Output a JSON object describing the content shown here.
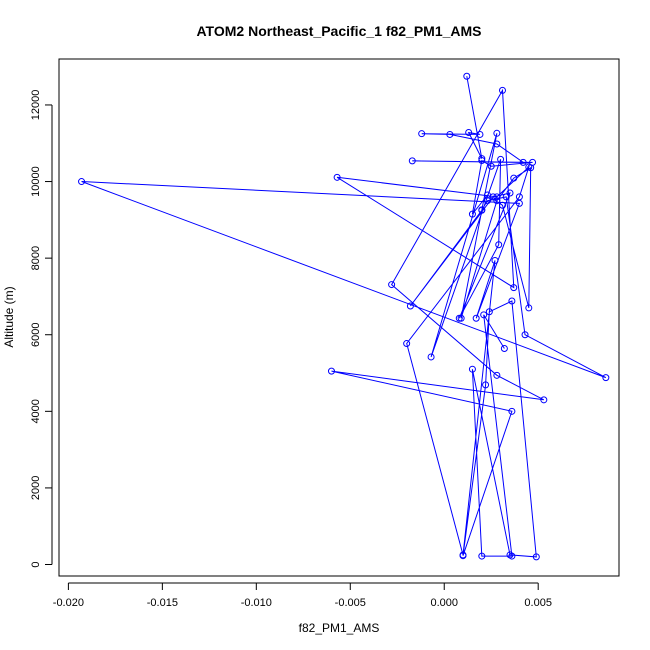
{
  "chart_data": {
    "type": "line",
    "title": "ATOM2 Northeast_Pacific_1 f82_PM1_AMS",
    "xlabel": "f82_PM1_AMS",
    "ylabel": "Altitude (m)",
    "xlim": [
      -0.0205,
      0.0093
    ],
    "ylim": [
      -300,
      13200
    ],
    "xticks": [
      -0.02,
      -0.015,
      -0.01,
      -0.005,
      0.0,
      0.005
    ],
    "xtick_labels": [
      "-0.020",
      "-0.015",
      "-0.010",
      "-0.005",
      "0.000",
      "0.005"
    ],
    "yticks": [
      0,
      2000,
      4000,
      6000,
      8000,
      10000,
      12000
    ],
    "ytick_labels": [
      "0",
      "2000",
      "4000",
      "6000",
      "8000",
      "10000",
      "12000"
    ],
    "color": "#0000ff",
    "grid": false,
    "series": [
      {
        "x": [
          0.0012,
          0.002,
          0.0013,
          0.0019,
          -0.0012,
          0.0003,
          0.0028,
          0.0042,
          -0.0017,
          0.0047,
          0.0025,
          0.002,
          0.0015,
          0.0023,
          0.0031,
          0.0045,
          0.0046,
          0.0037,
          0.0028,
          0.0009,
          0.002,
          -0.0018,
          0.0026,
          0.0035,
          0.0008,
          0.0029,
          0.003,
          -0.0007,
          0.0028,
          0.002,
          0.0023,
          0.0033,
          0.0043,
          0.0086,
          -0.0193,
          0.004,
          0.0017,
          0.0027,
          0.001,
          -0.002,
          0.004,
          0.0045,
          0.0028,
          -0.0057,
          0.0037,
          0.0031,
          -0.0028,
          0.0028,
          0.0053,
          -0.006,
          0.0036,
          0.001,
          0.0022,
          0.0024,
          0.0036,
          0.0049,
          0.0035,
          0.0015,
          0.002,
          0.0036,
          0.0021,
          0.0032
        ],
        "y": [
          12750,
          10600,
          11280,
          11230,
          11250,
          11230,
          10980,
          10500,
          10540,
          10500,
          10400,
          10550,
          9150,
          9650,
          9380,
          6700,
          10360,
          10090,
          9500,
          6430,
          9250,
          6750,
          9600,
          9700,
          6430,
          8350,
          10580,
          5420,
          11260,
          9260,
          9500,
          9600,
          6000,
          4880,
          10000,
          9430,
          6430,
          7940,
          250,
          5770,
          9600,
          10380,
          9600,
          10110,
          7230,
          12380,
          7310,
          4940,
          4300,
          5050,
          4000,
          230,
          4690,
          6600,
          6880,
          200,
          250,
          5100,
          220,
          220,
          6520,
          5640
        ]
      }
    ]
  }
}
